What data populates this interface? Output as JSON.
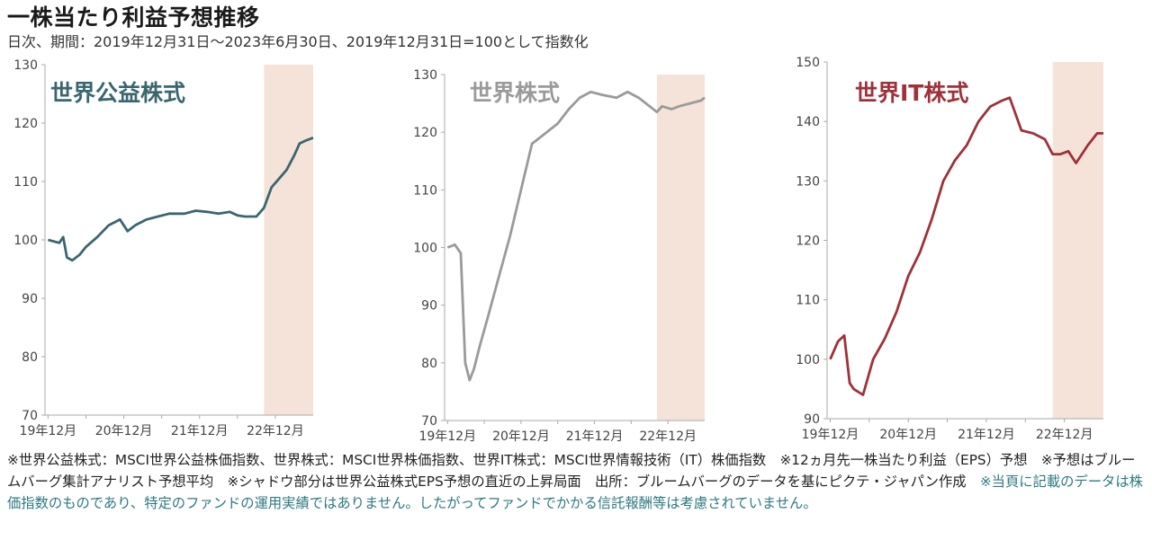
{
  "title": "一株当たり利益予想推移",
  "subtitle": "日次、期間：2019年12月31日～2023年6月30日、2019年12月31日=100として指数化",
  "notes": {
    "main": "※世界公益株式：MSCI世界公益株価指数、世界株式：MSCI世界株価指数、世界IT株式：MSCI世界情報技術（IT）株価指数　※12ヵ月先一株当たり利益（EPS）予想　※予想はブルームバーグ集計アナリスト予想平均　※シャドウ部分は世界公益株式EPS予想の直近の上昇局面　出所：ブルームバーグのデータを基にピクテ・ジャパン作成　",
    "disclaimer": "※当頁に記載のデータは株価指数のものであり、特定のファンドの運用実績ではありません。したがってファンドでかかる信託報酬等は考慮されていません。"
  },
  "colors": {
    "shade": "#f5e3d9",
    "axis": "#aaaaaa"
  },
  "chart_data": [
    {
      "type": "line",
      "name": "世界公益株式",
      "color": "#3a6670",
      "x_tick_labels": [
        "19年12月",
        "20年12月",
        "21年12月",
        "22年12月"
      ],
      "y_ticks": [
        70,
        80,
        90,
        100,
        110,
        120,
        130
      ],
      "ylim": [
        70,
        130
      ],
      "xlim": [
        2019.96,
        2023.5
      ],
      "shade": [
        2022.85,
        2023.5
      ],
      "x": [
        2020.0,
        2020.15,
        2020.2,
        2020.25,
        2020.32,
        2020.42,
        2020.5,
        2020.65,
        2020.8,
        2020.95,
        2021.05,
        2021.15,
        2021.3,
        2021.45,
        2021.6,
        2021.8,
        2021.95,
        2022.1,
        2022.25,
        2022.4,
        2022.5,
        2022.6,
        2022.75,
        2022.85,
        2022.95,
        2023.05,
        2023.15,
        2023.25,
        2023.32,
        2023.4,
        2023.5
      ],
      "y": [
        100,
        99.5,
        100.5,
        97,
        96.5,
        97.5,
        98.8,
        100.5,
        102.5,
        103.5,
        101.5,
        102.5,
        103.5,
        104,
        104.5,
        104.5,
        105,
        104.8,
        104.5,
        104.8,
        104.2,
        104,
        104,
        105.5,
        109,
        110.5,
        112,
        114.5,
        116.5,
        117,
        117.5
      ]
    },
    {
      "type": "line",
      "name": "世界株式",
      "color": "#9a9a9a",
      "x_tick_labels": [
        "19年12月",
        "20年12月",
        "21年12月",
        "22年12月"
      ],
      "y_ticks": [
        70,
        80,
        90,
        100,
        110,
        120,
        130
      ],
      "ylim": [
        70,
        130
      ],
      "xlim": [
        2019.96,
        2023.5
      ],
      "shade": [
        2022.85,
        2023.5
      ],
      "x": [
        2020.0,
        2020.1,
        2020.18,
        2020.24,
        2020.3,
        2020.36,
        2020.44,
        2020.55,
        2020.7,
        2020.85,
        2021.0,
        2021.15,
        2021.3,
        2021.5,
        2021.65,
        2021.8,
        2021.95,
        2022.1,
        2022.3,
        2022.45,
        2022.6,
        2022.75,
        2022.85,
        2022.92,
        2023.05,
        2023.15,
        2023.3,
        2023.45,
        2023.5
      ],
      "y": [
        100,
        100.5,
        99,
        80,
        77,
        79,
        83,
        88,
        95,
        102,
        110,
        118,
        119.5,
        121.5,
        124,
        126,
        127,
        126.5,
        126,
        127,
        126,
        124.5,
        123.5,
        124.5,
        124,
        124.5,
        125,
        125.5,
        126
      ]
    },
    {
      "type": "line",
      "name": "世界IT株式",
      "color": "#9e3139",
      "x_tick_labels": [
        "19年12月",
        "20年12月",
        "21年12月",
        "22年12月"
      ],
      "y_ticks": [
        90,
        100,
        110,
        120,
        130,
        140,
        150
      ],
      "ylim": [
        90,
        150
      ],
      "xlim": [
        2019.96,
        2023.5
      ],
      "shade": [
        2022.85,
        2023.5
      ],
      "x": [
        2020.0,
        2020.1,
        2020.18,
        2020.25,
        2020.3,
        2020.42,
        2020.55,
        2020.7,
        2020.85,
        2021.0,
        2021.15,
        2021.3,
        2021.45,
        2021.6,
        2021.75,
        2021.9,
        2022.05,
        2022.2,
        2022.3,
        2022.45,
        2022.6,
        2022.75,
        2022.85,
        2022.95,
        2023.05,
        2023.15,
        2023.3,
        2023.42,
        2023.5
      ],
      "y": [
        100,
        103,
        104,
        96,
        95,
        94,
        100,
        103.5,
        108,
        114,
        118,
        123.5,
        130,
        133.5,
        136,
        140,
        142.5,
        143.5,
        144,
        138.5,
        138,
        137,
        134.5,
        134.5,
        135,
        133,
        136,
        138,
        138
      ]
    }
  ]
}
